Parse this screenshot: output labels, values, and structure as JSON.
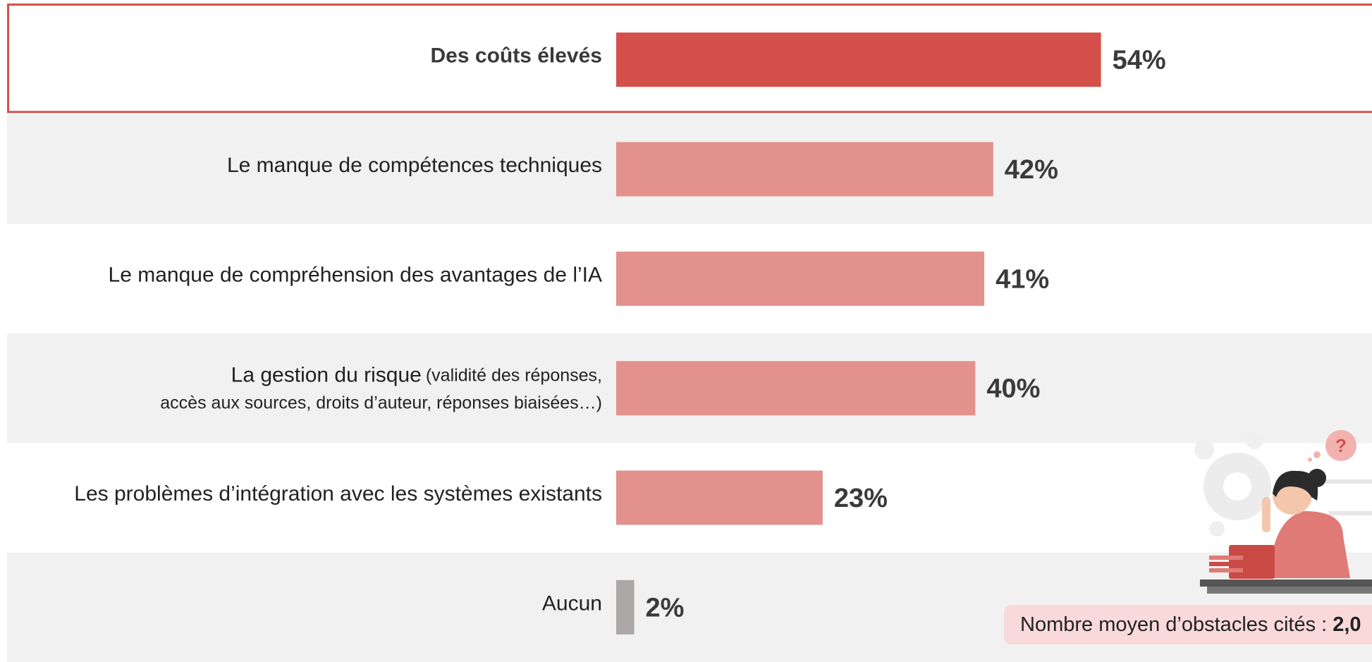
{
  "chart_data": {
    "type": "bar",
    "orientation": "horizontal",
    "categories": [
      "Des coûts élevés",
      "Le manque de compétences techniques",
      "Le manque de compréhension des avantages de l’IA",
      "La gestion du risque",
      "Les problèmes d’intégration avec les systèmes existants",
      "Aucun"
    ],
    "category_details": [
      null,
      null,
      null,
      [
        "(validité des réponses,",
        "accès aux sources, droits d’auteur, réponses biaisées…)"
      ],
      null,
      null
    ],
    "values": [
      54,
      42,
      41,
      40,
      23,
      2
    ],
    "value_labels": [
      "54%",
      "42%",
      "41%",
      "40%",
      "23%",
      "2%"
    ],
    "colors": [
      "#d4504a",
      "#e3918c",
      "#e3918c",
      "#e3918c",
      "#e3918c",
      "#aba7a7"
    ],
    "xlim": [
      0,
      60
    ],
    "note": {
      "text": "Nombre moyen d’obstacles cités :",
      "value": "2,0"
    }
  }
}
